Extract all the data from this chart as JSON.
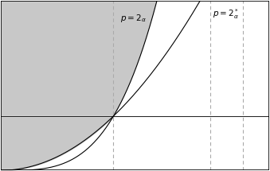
{
  "figsize": [
    3.39,
    2.15
  ],
  "dpi": 100,
  "xlim": [
    0,
    10
  ],
  "ylim": [
    0,
    10
  ],
  "light_gray": "#c8c8c8",
  "dark_gray": "#484848",
  "white": "#ffffff",
  "vline1_x": 4.2,
  "vline2_x": 7.8,
  "vline3_x": 9.0,
  "hline_y": 3.2,
  "curve1_power": 2.0,
  "curve2_power": 3.5,
  "dashed_color": "#aaaaaa",
  "border_color": "#222222",
  "text_fontsize": 7.5
}
